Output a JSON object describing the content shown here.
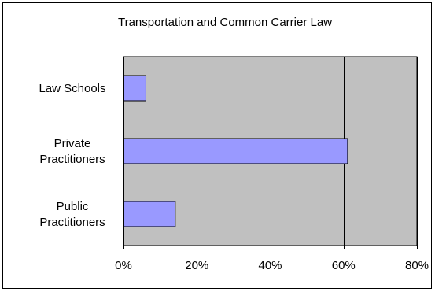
{
  "chart_data": {
    "type": "bar",
    "orientation": "horizontal",
    "title": "Transportation and Common Carrier Law",
    "categories": [
      "Law  Schools",
      "Private Practitioners",
      "Public Practitioners"
    ],
    "category_lines": [
      [
        "Law  Schools"
      ],
      [
        "Private",
        "Practitioners"
      ],
      [
        "Public",
        "Practitioners"
      ]
    ],
    "values": [
      6,
      61,
      14
    ],
    "xlim": [
      0,
      80
    ],
    "x_ticks": [
      0,
      20,
      40,
      60,
      80
    ],
    "x_tick_labels": [
      "0%",
      "20%",
      "40%",
      "60%",
      "80%"
    ],
    "grid": "vertical-major",
    "legend": "none",
    "colors": {
      "plot_background": "#c0c0c0",
      "bar_fill": "#9999ff",
      "bar_stroke": "#000000",
      "grid": "#000000"
    }
  }
}
